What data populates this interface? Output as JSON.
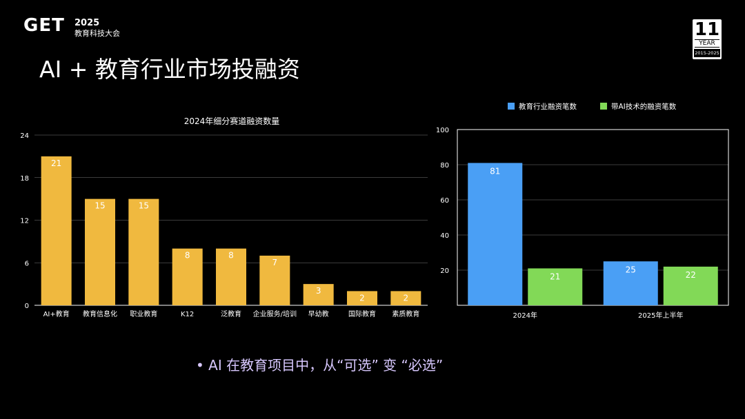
{
  "header": {
    "logo_mark": "GET",
    "logo_year": "2025",
    "logo_sub": "教育科技大会",
    "badge_number": "11",
    "badge_year": "YEAR",
    "badge_range": "2015-2025"
  },
  "slide": {
    "title": "AI + 教育行业市场投融资",
    "bullet": "• AI 在教育项目中，从“可选” 变 “必选”"
  },
  "colors": {
    "bar_yellow": "#f0b93f",
    "bar_blue": "#4a9ff5",
    "bar_green": "#82d957",
    "grid": "#777777"
  },
  "chart_data": [
    {
      "type": "bar",
      "title": "2024年细分赛道融资数量",
      "categories": [
        "AI+教育",
        "教育信息化",
        "职业教育",
        "K12",
        "泛教育",
        "企业服务/培训",
        "早幼教",
        "国际教育",
        "素质教育"
      ],
      "values": [
        21,
        15,
        15,
        8,
        8,
        7,
        3,
        2,
        2
      ],
      "ylim": [
        0,
        24
      ],
      "yticks": [
        0,
        6,
        12,
        18,
        24
      ],
      "grid": true
    },
    {
      "type": "bar",
      "categories": [
        "2024年",
        "2025年上半年"
      ],
      "series": [
        {
          "name": "教育行业融资笔数",
          "values": [
            81,
            25
          ]
        },
        {
          "name": "带AI技术的融资笔数",
          "values": [
            21,
            22
          ]
        }
      ],
      "ylim": [
        0,
        100
      ],
      "yticks": [
        20,
        40,
        60,
        80,
        100
      ],
      "legend": "top",
      "grid": true
    }
  ]
}
